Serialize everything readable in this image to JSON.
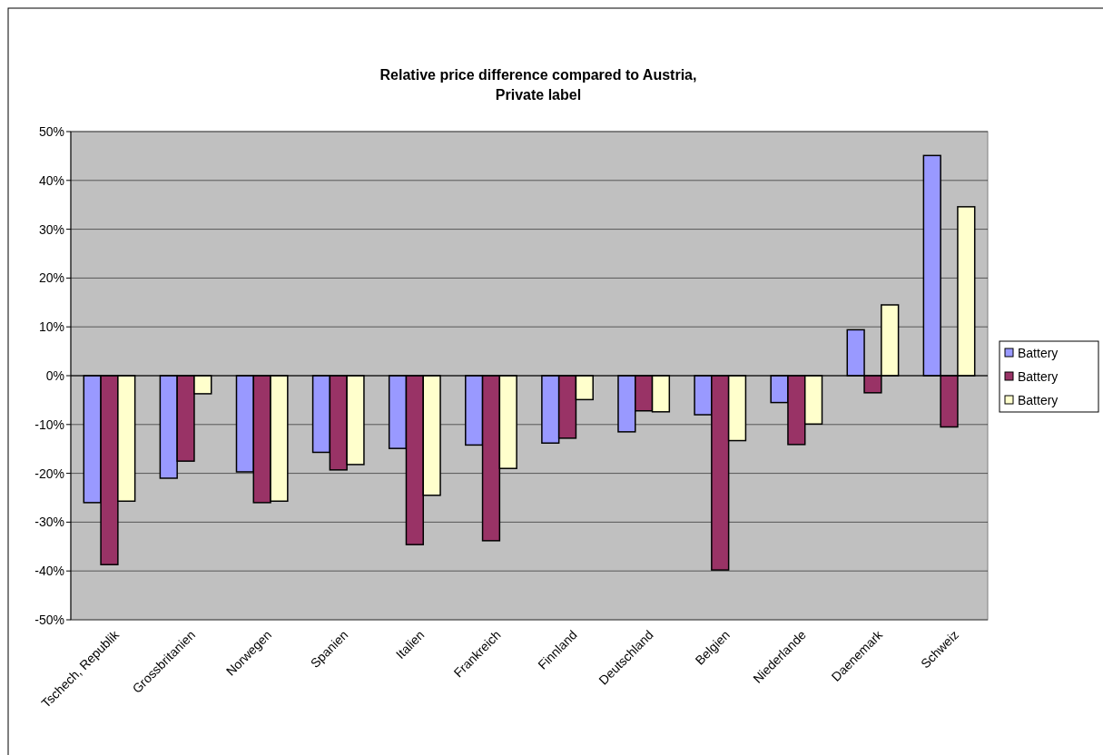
{
  "chart_data": {
    "type": "bar",
    "title": "Relative price difference compared to Austria,\nPrivate label",
    "categories": [
      "Tschech, Republik",
      "Grossbritanien",
      "Norwegen",
      "Spanien",
      "Italien",
      "Frankreich",
      "Finnland",
      "Deutschland",
      "Belgien",
      "Niederlande",
      "Daenemark",
      "Schweiz"
    ],
    "series": [
      {
        "name": "Battery",
        "color": "#9999ff",
        "values": [
          -26,
          -21,
          -19.7,
          -15.7,
          -14.9,
          -14.2,
          -13.8,
          -11.5,
          -8,
          -5.5,
          9.4,
          45.1
        ]
      },
      {
        "name": "Battery",
        "color": "#993366",
        "values": [
          -38.7,
          -17.5,
          -26,
          -19.3,
          -34.6,
          -33.8,
          -12.8,
          -7.2,
          -39.8,
          -14.1,
          -3.5,
          -10.5
        ]
      },
      {
        "name": "Battery",
        "color": "#ffffcc",
        "values": [
          -25.7,
          -3.7,
          -25.7,
          -18.2,
          -24.5,
          -19,
          -4.9,
          -7.4,
          -13.3,
          -9.9,
          14.5,
          34.6
        ]
      }
    ],
    "ylim": [
      -50,
      50
    ],
    "yticks": [
      {
        "value": -50,
        "label": "-50%"
      },
      {
        "value": -40,
        "label": "-40%"
      },
      {
        "value": -30,
        "label": "-30%"
      },
      {
        "value": -20,
        "label": "-20%"
      },
      {
        "value": -10,
        "label": "-10%"
      },
      {
        "value": 0,
        "label": "0%"
      },
      {
        "value": 10,
        "label": "10%"
      },
      {
        "value": 20,
        "label": "20%"
      },
      {
        "value": 30,
        "label": "30%"
      },
      {
        "value": 40,
        "label": "40%"
      },
      {
        "value": 50,
        "label": "50%"
      }
    ],
    "grid": "y",
    "legend": "right"
  }
}
